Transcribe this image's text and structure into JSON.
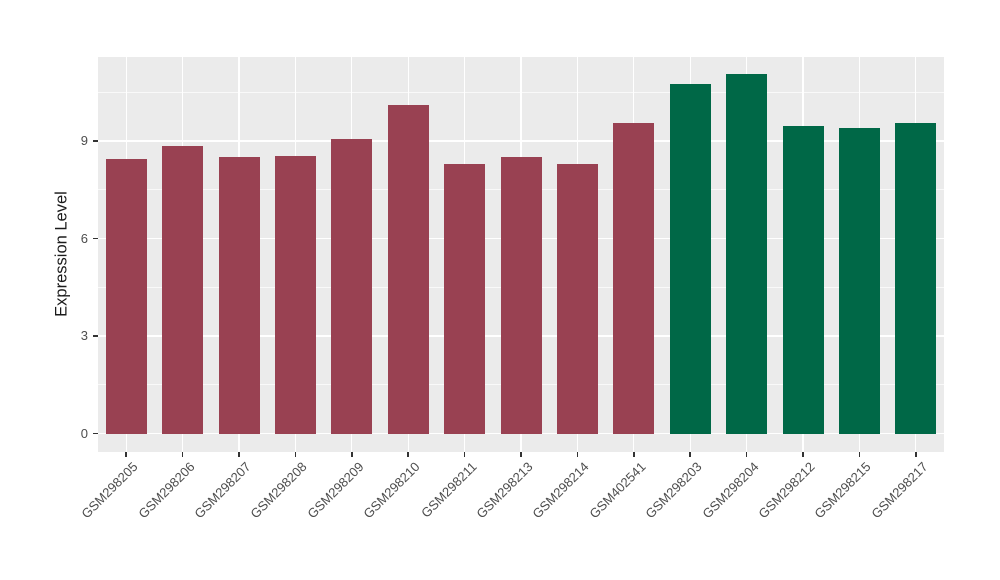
{
  "chart_data": {
    "type": "bar",
    "title": "",
    "ylabel": "Expression Level",
    "xlabel": "",
    "categories": [
      "GSM298205",
      "GSM298206",
      "GSM298207",
      "GSM298208",
      "GSM298209",
      "GSM298210",
      "GSM298211",
      "GSM298213",
      "GSM298214",
      "GSM402541",
      "GSM298203",
      "GSM298204",
      "GSM298212",
      "GSM298215",
      "GSM298217"
    ],
    "values": [
      8.45,
      8.85,
      8.5,
      8.55,
      9.05,
      10.1,
      8.3,
      8.5,
      8.3,
      9.55,
      10.75,
      11.05,
      9.45,
      9.4,
      9.55
    ],
    "bar_color_groups": [
      "maroon",
      "maroon",
      "maroon",
      "maroon",
      "maroon",
      "maroon",
      "maroon",
      "maroon",
      "maroon",
      "maroon",
      "green",
      "green",
      "green",
      "green",
      "green"
    ],
    "colors": {
      "maroon": "#994152",
      "green": "#006847"
    },
    "yticks": [
      0,
      3,
      6,
      9
    ],
    "minor_yticks": [
      1.5,
      4.5,
      7.5,
      10.5
    ],
    "ylim": [
      -0.565,
      11.585
    ],
    "bar_width_frac": 0.73,
    "panel_bg": "#EBEBEB",
    "grid_color": "#FFFFFF",
    "grid": true,
    "legend_position": "none",
    "x_label_angle_deg": -45,
    "tick_color": "#333333",
    "axis_text_color": "#4D4D4D",
    "axis_title_color": "#1A1A1A"
  }
}
